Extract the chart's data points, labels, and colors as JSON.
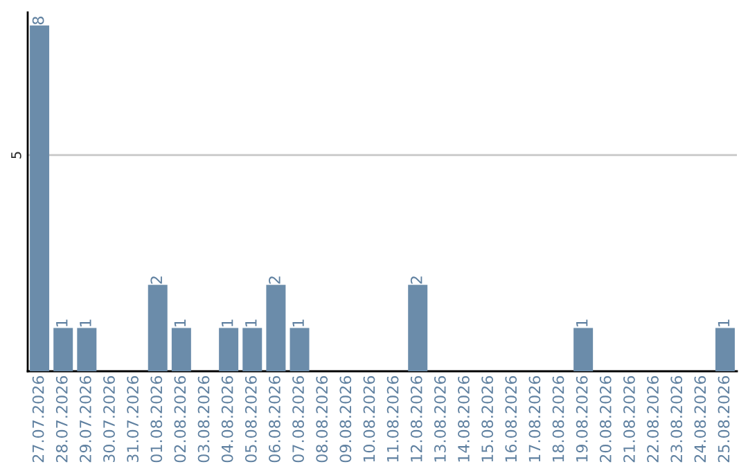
{
  "chart_data": {
    "type": "bar",
    "categories": [
      "27.07.2026",
      "28.07.2026",
      "29.07.2026",
      "30.07.2026",
      "31.07.2026",
      "01.08.2026",
      "02.08.2026",
      "03.08.2026",
      "04.08.2026",
      "05.08.2026",
      "06.08.2026",
      "07.08.2026",
      "08.08.2026",
      "09.08.2026",
      "10.08.2026",
      "11.08.2026",
      "12.08.2026",
      "13.08.2026",
      "14.08.2026",
      "15.08.2026",
      "16.08.2026",
      "17.08.2026",
      "18.08.2026",
      "19.08.2026",
      "20.08.2026",
      "21.08.2026",
      "22.08.2026",
      "23.08.2026",
      "24.08.2026",
      "25.08.2026"
    ],
    "values": [
      8,
      1,
      1,
      0,
      0,
      2,
      1,
      0,
      1,
      1,
      2,
      1,
      0,
      0,
      0,
      0,
      2,
      0,
      0,
      0,
      0,
      0,
      0,
      1,
      0,
      0,
      0,
      0,
      0,
      1
    ],
    "value_labels": [
      "8",
      "1",
      "1",
      null,
      null,
      "2",
      "1",
      null,
      "1",
      "1",
      "2",
      "1",
      null,
      null,
      null,
      null,
      "2",
      null,
      null,
      null,
      null,
      null,
      null,
      "1",
      null,
      null,
      null,
      null,
      null,
      "1"
    ],
    "color": "#6b8caa",
    "ylim": [
      0,
      8.3
    ],
    "yticks": [
      5
    ],
    "grid": "y"
  }
}
